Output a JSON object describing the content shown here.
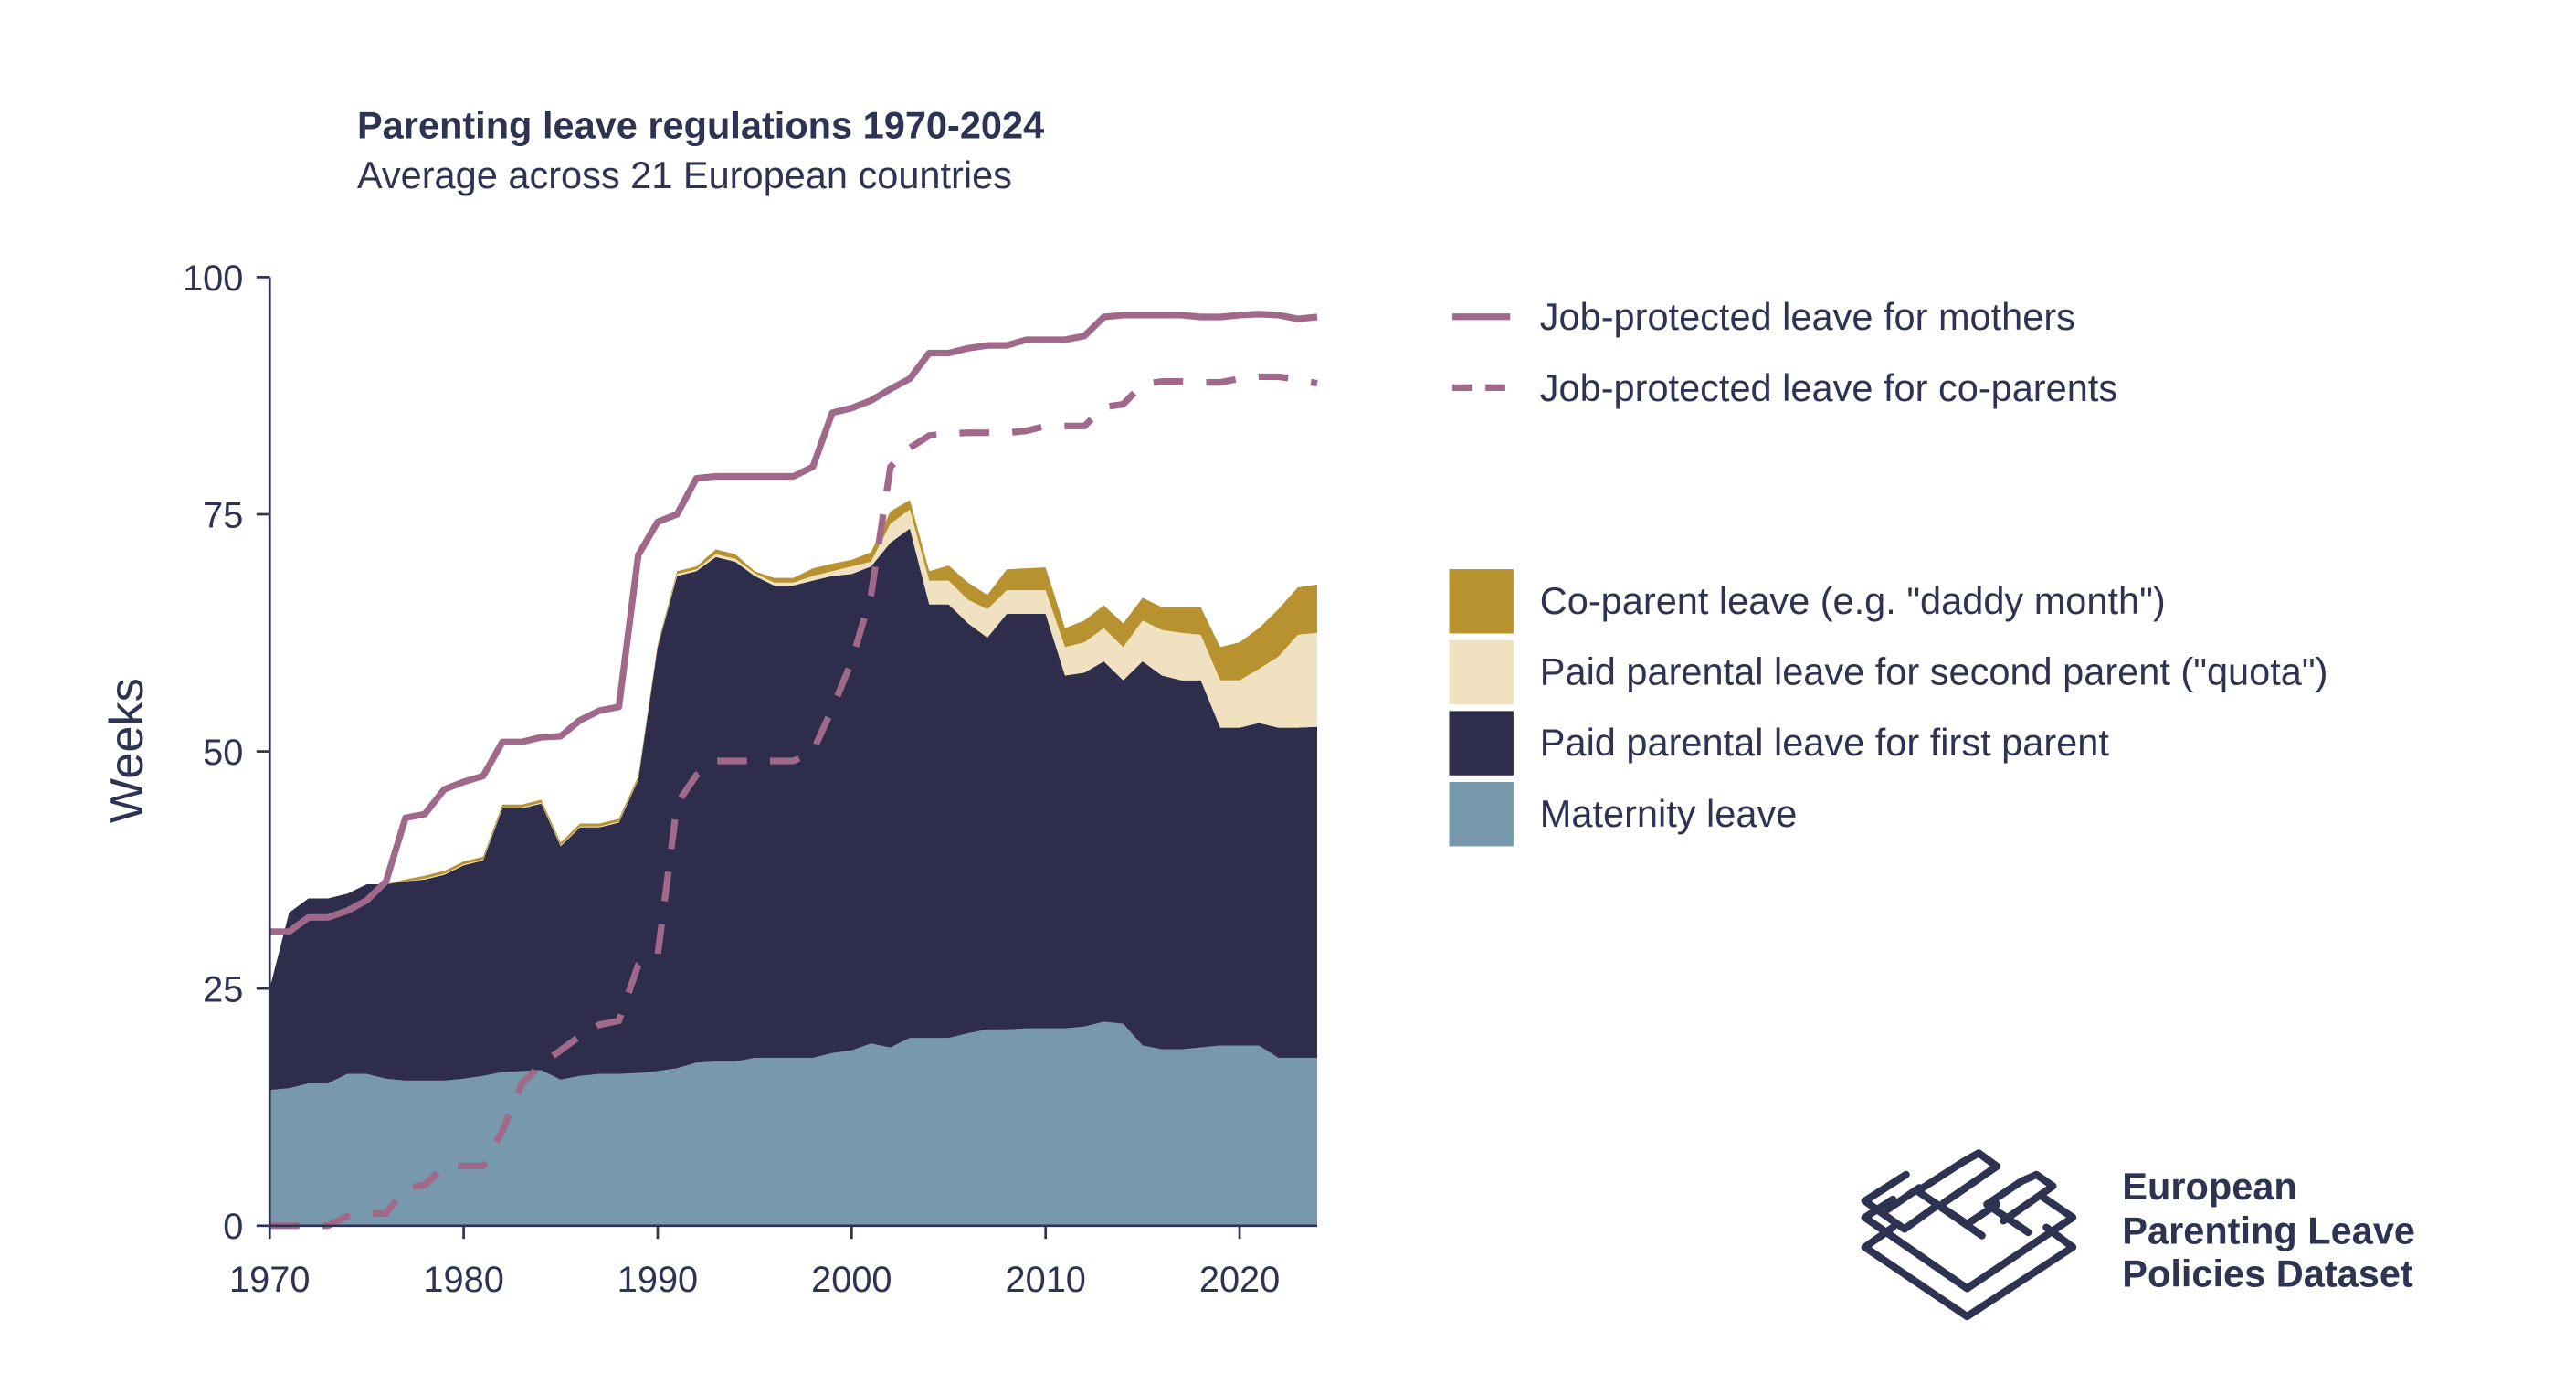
{
  "chart_data": {
    "type": "area",
    "title": "Parenting leave regulations 1970-2024",
    "subtitle": "Average across 21 European countries",
    "xlabel": "",
    "ylabel": "Weeks",
    "xlim": [
      1970,
      2024
    ],
    "ylim": [
      0,
      100
    ],
    "x_ticks": [
      "1970",
      "1980",
      "1990",
      "2000",
      "2010",
      "2020"
    ],
    "y_ticks": [
      "0",
      "25",
      "50",
      "75",
      "100"
    ],
    "grid": false,
    "legend_position": "right",
    "stacked": true,
    "stack_values_are_cumulative_tops": true,
    "x": [
      1970,
      1971,
      1972,
      1973,
      1974,
      1975,
      1976,
      1977,
      1978,
      1979,
      1980,
      1981,
      1982,
      1983,
      1984,
      1985,
      1986,
      1987,
      1988,
      1989,
      1990,
      1991,
      1992,
      1993,
      1994,
      1995,
      1996,
      1997,
      1998,
      1999,
      2000,
      2001,
      2002,
      2003,
      2004,
      2005,
      2006,
      2007,
      2008,
      2009,
      2010,
      2011,
      2012,
      2013,
      2014,
      2015,
      2016,
      2017,
      2018,
      2019,
      2020,
      2021,
      2022,
      2023,
      2024
    ],
    "stacked_series": [
      {
        "name": "Maternity leave",
        "color": "#7898ab",
        "values": [
          14.3,
          14.5,
          15,
          15,
          16,
          16,
          15.5,
          15.3,
          15.3,
          15.3,
          15.5,
          15.8,
          16.2,
          16.3,
          16.4,
          15.4,
          15.8,
          16,
          16,
          16.1,
          16.3,
          16.6,
          17.2,
          17.3,
          17.3,
          17.7,
          17.7,
          17.7,
          17.7,
          18.2,
          18.5,
          19.2,
          18.8,
          19.8,
          19.8,
          19.8,
          20.3,
          20.7,
          20.7,
          20.8,
          20.8,
          20.8,
          21,
          21.5,
          21.3,
          19,
          18.6,
          18.6,
          18.8,
          19,
          19,
          19,
          17.7,
          17.7,
          17.7
        ]
      },
      {
        "name": "Paid parental leave for first parent",
        "color": "#2e2d4c",
        "values": [
          25,
          33,
          34.5,
          34.5,
          35,
          36,
          36,
          36.3,
          36.5,
          37,
          38,
          38.5,
          44,
          44,
          44.5,
          40,
          42,
          42,
          42.5,
          47,
          61,
          68.5,
          69,
          70.5,
          70,
          68.5,
          67.5,
          67.5,
          68,
          68.5,
          68.7,
          69.5,
          72,
          73.5,
          65.5,
          65.5,
          63.5,
          62,
          64.5,
          64.5,
          64.5,
          58,
          58.3,
          59.5,
          57.5,
          59.5,
          58,
          57.5,
          57.5,
          52.5,
          52.5,
          53,
          52.5,
          52.5,
          52.6
        ]
      },
      {
        "name": "Paid parental leave for second parent (\"quota\")",
        "color": "#f0e2c0",
        "values": [
          25,
          33,
          34.5,
          34.5,
          35,
          36,
          36,
          36.3,
          36.6,
          37.1,
          38.1,
          38.6,
          44.1,
          44.1,
          44.6,
          40.1,
          42.1,
          42.1,
          42.6,
          47.1,
          61.1,
          68.7,
          69.2,
          70.8,
          70.3,
          68.8,
          67.8,
          67.8,
          68.5,
          69,
          69.5,
          70,
          74,
          75.5,
          68,
          68,
          66,
          65,
          67,
          67,
          67,
          61,
          61.5,
          63,
          61,
          63.8,
          62.8,
          62.5,
          62.3,
          57.5,
          57.5,
          58.7,
          60,
          62.3,
          62.5
        ]
      },
      {
        "name": "Co-parent leave (e.g. \"daddy month\")",
        "color": "#b8922f",
        "values": [
          25,
          33,
          34.5,
          34.5,
          35,
          36,
          36,
          36.5,
          36.9,
          37.4,
          38.4,
          38.9,
          44.4,
          44.4,
          44.9,
          40.4,
          42.4,
          42.4,
          42.9,
          47.4,
          61.3,
          69,
          69.5,
          71.3,
          70.8,
          69,
          68.3,
          68.3,
          69.3,
          69.8,
          70.2,
          71,
          75.3,
          76.5,
          69,
          69.6,
          67.8,
          66.5,
          69.2,
          69.3,
          69.4,
          63,
          63.8,
          65.4,
          63.5,
          66.2,
          65.2,
          65.2,
          65.2,
          61,
          61.5,
          63,
          65,
          67.3,
          67.6
        ]
      }
    ],
    "line_series": [
      {
        "name": "Job-protected leave for mothers",
        "style": "solid",
        "color": "#a0688a",
        "values": [
          31,
          31,
          32.5,
          32.5,
          33.2,
          34.3,
          36.3,
          43,
          43.4,
          46,
          46.8,
          47.4,
          51,
          51,
          51.5,
          51.6,
          53.3,
          54.3,
          54.7,
          70.7,
          74.2,
          75,
          78.8,
          79,
          79,
          79,
          79,
          79,
          80,
          85.7,
          86.2,
          87,
          88.2,
          89.3,
          92,
          92,
          92.5,
          92.8,
          92.8,
          93.4,
          93.4,
          93.4,
          93.8,
          95.8,
          96,
          96,
          96,
          96,
          95.8,
          95.8,
          96,
          96.1,
          96,
          95.6,
          95.8
        ]
      },
      {
        "name": "Job-protected leave for co-parents",
        "style": "dashed",
        "color": "#a0688a",
        "values": [
          0,
          0,
          0,
          0,
          1,
          1.3,
          1.3,
          4,
          4.3,
          6.3,
          6.3,
          6.3,
          10,
          15,
          17,
          18.5,
          20,
          21.2,
          21.6,
          27.5,
          28.5,
          44.5,
          47.5,
          49,
          49,
          49,
          49,
          49,
          50,
          54.5,
          59.5,
          66.5,
          80,
          82,
          83.3,
          83.5,
          83.6,
          83.6,
          83.6,
          83.8,
          84.3,
          84.3,
          84.3,
          86.3,
          86.6,
          88.7,
          89,
          89,
          88.9,
          88.9,
          89.3,
          89.5,
          89.5,
          89.2,
          88.8
        ]
      }
    ]
  },
  "legend": {
    "lines": [
      "Job-protected leave for mothers",
      "Job-protected leave for co-parents"
    ],
    "areas": [
      "Co-parent leave (e.g. \"daddy month\")",
      "Paid parental leave for second parent (\"quota\")",
      "Paid parental leave for first parent",
      "Maternity leave"
    ]
  },
  "logo": {
    "line1": "European",
    "line2": "Parenting Leave",
    "line3": "Policies Dataset"
  },
  "colors": {
    "text": "#2e3352",
    "axis": "#2e3352"
  }
}
